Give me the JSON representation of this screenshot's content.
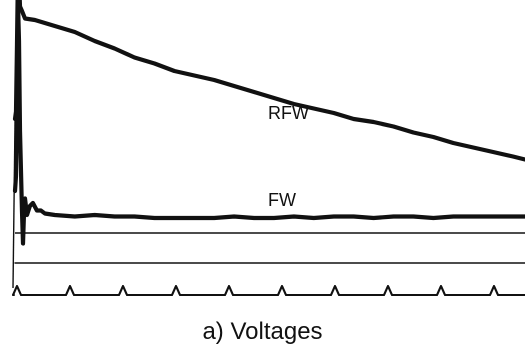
{
  "chart_data": {
    "type": "line",
    "title": "",
    "caption": "a) Voltages",
    "xlabel": "",
    "ylabel": "",
    "grid": false,
    "series": [
      {
        "name": "RFW",
        "points": [
          [
            0,
            0
          ],
          [
            1,
            0.05
          ],
          [
            2,
            0.5
          ],
          [
            3,
            1.0
          ],
          [
            4,
            0.93
          ],
          [
            5,
            0.75
          ],
          [
            7,
            0.72
          ],
          [
            10,
            0.67
          ],
          [
            20,
            0.66
          ],
          [
            40,
            0.62
          ],
          [
            60,
            0.58
          ],
          [
            80,
            0.52
          ],
          [
            100,
            0.47
          ],
          [
            120,
            0.41
          ],
          [
            140,
            0.37
          ],
          [
            160,
            0.32
          ],
          [
            180,
            0.29
          ],
          [
            200,
            0.26
          ],
          [
            220,
            0.22
          ],
          [
            240,
            0.18
          ],
          [
            260,
            0.14
          ],
          [
            280,
            0.1
          ],
          [
            300,
            0.07
          ],
          [
            320,
            0.04
          ],
          [
            340,
            0.0
          ],
          [
            360,
            -0.02
          ],
          [
            380,
            -0.05
          ],
          [
            400,
            -0.09
          ],
          [
            420,
            -0.12
          ],
          [
            440,
            -0.16
          ],
          [
            460,
            -0.19
          ],
          [
            480,
            -0.22
          ],
          [
            500,
            -0.25
          ],
          [
            512,
            -0.27
          ]
        ]
      },
      {
        "name": "FW",
        "points": [
          [
            0,
            0
          ],
          [
            1,
            0.1
          ],
          [
            2,
            0.6
          ],
          [
            3,
            1.25
          ],
          [
            4,
            1.0
          ],
          [
            5,
            0.4
          ],
          [
            7,
            -0.14
          ],
          [
            8,
            -0.35
          ],
          [
            9,
            -0.15
          ],
          [
            10,
            -0.05
          ],
          [
            12,
            -0.16
          ],
          [
            15,
            -0.1
          ],
          [
            18,
            -0.08
          ],
          [
            22,
            -0.13
          ],
          [
            26,
            -0.13
          ],
          [
            30,
            -0.15
          ],
          [
            40,
            -0.16
          ],
          [
            60,
            -0.17
          ],
          [
            80,
            -0.16
          ],
          [
            100,
            -0.17
          ],
          [
            120,
            -0.17
          ],
          [
            140,
            -0.18
          ],
          [
            160,
            -0.18
          ],
          [
            180,
            -0.18
          ],
          [
            200,
            -0.18
          ],
          [
            220,
            -0.17
          ],
          [
            240,
            -0.18
          ],
          [
            260,
            -0.18
          ],
          [
            280,
            -0.17
          ],
          [
            300,
            -0.18
          ],
          [
            320,
            -0.17
          ],
          [
            340,
            -0.17
          ],
          [
            360,
            -0.18
          ],
          [
            380,
            -0.17
          ],
          [
            400,
            -0.17
          ],
          [
            420,
            -0.18
          ],
          [
            440,
            -0.17
          ],
          [
            460,
            -0.17
          ],
          [
            480,
            -0.17
          ],
          [
            500,
            -0.17
          ],
          [
            512,
            -0.17
          ]
        ]
      },
      {
        "name": "",
        "points": [
          [
            0,
            -0.2
          ],
          [
            512,
            -0.2
          ]
        ]
      }
    ],
    "pulse_train": {
      "count": 10
    }
  }
}
